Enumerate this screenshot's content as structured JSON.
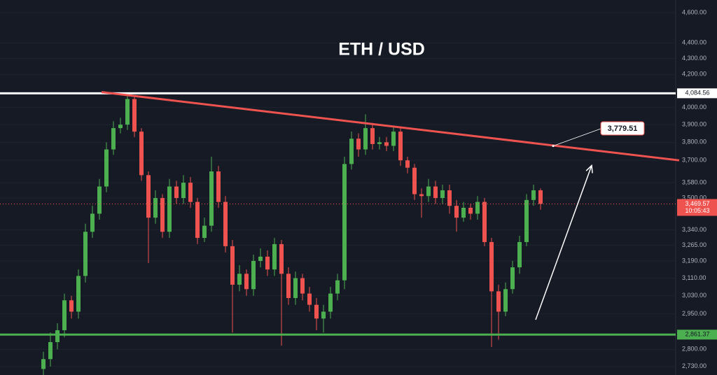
{
  "chart_data": {
    "type": "candlestick",
    "title": "ETH / USD",
    "log_scale": true,
    "grid": true,
    "xlim": [
      -6.2,
      90
    ],
    "ylim": [
      2696,
      4687
    ],
    "yticks": [
      {
        "value": 4600,
        "label": "4,600.00"
      },
      {
        "value": 4400,
        "label": "4,400.00"
      },
      {
        "value": 4300,
        "label": "4,300.00"
      },
      {
        "value": 4200,
        "label": "4,200.00"
      },
      {
        "value": 4000,
        "label": "4,000.00"
      },
      {
        "value": 3900,
        "label": "3,900.00"
      },
      {
        "value": 3800,
        "label": "3,800.00"
      },
      {
        "value": 3700,
        "label": "3,700.00"
      },
      {
        "value": 3580,
        "label": "3,580.00"
      },
      {
        "value": 3500,
        "label": "3,500.00"
      },
      {
        "value": 3340,
        "label": "3,340.00"
      },
      {
        "value": 3265,
        "label": "3,265.00"
      },
      {
        "value": 3190,
        "label": "3,190.00"
      },
      {
        "value": 3110,
        "label": "3,110.00"
      },
      {
        "value": 3030,
        "label": "3,030.00"
      },
      {
        "value": 2950,
        "label": "2,950.00"
      },
      {
        "value": 2800,
        "label": "2,800.00"
      },
      {
        "value": 2730,
        "label": "2,730.00"
      }
    ],
    "up_color": "#4caf50",
    "down_color": "#ef5350",
    "candles": {
      "open": [
        2720,
        2760,
        2830,
        2880,
        3010,
        2960,
        3120,
        3330,
        3420,
        3560,
        3760,
        3880,
        3900,
        4050,
        3860,
        3620,
        3400,
        3500,
        3330,
        3560,
        3500,
        3580,
        3480,
        3300,
        3360,
        3640,
        3480,
        3260,
        3080,
        3130,
        3060,
        3190,
        3210,
        3150,
        3270,
        3130,
        3020,
        3110,
        3040,
        2990,
        2930,
        2960,
        3040,
        3100,
        3680,
        3820,
        3760,
        3880,
        3790,
        3800,
        3780,
        3860,
        3700,
        3660,
        3520,
        3510,
        3560,
        3500,
        3540,
        3460,
        3400,
        3450,
        3420,
        3480,
        3280,
        3050,
        2960,
        3060,
        3160,
        3280,
        3490,
        3540
      ],
      "high": [
        2790,
        2870,
        2910,
        3040,
        3030,
        3150,
        3370,
        3460,
        3600,
        3800,
        3920,
        3940,
        4090,
        4070,
        3880,
        3640,
        3540,
        3520,
        3600,
        3590,
        3620,
        3610,
        3500,
        3400,
        3720,
        3670,
        3510,
        3290,
        3170,
        3150,
        3220,
        3250,
        3240,
        3300,
        3290,
        3160,
        3140,
        3130,
        3070,
        3020,
        2990,
        3070,
        3130,
        3720,
        3860,
        3850,
        3960,
        3910,
        3830,
        3830,
        3890,
        3880,
        3720,
        3680,
        3550,
        3600,
        3590,
        3570,
        3570,
        3490,
        3480,
        3470,
        3510,
        3500,
        3300,
        3080,
        3090,
        3190,
        3310,
        3520,
        3570,
        3550
      ],
      "low": [
        2690,
        2730,
        2800,
        2850,
        2930,
        2930,
        3090,
        3300,
        3390,
        3530,
        3730,
        3850,
        3870,
        3830,
        3590,
        3180,
        3370,
        3300,
        3300,
        3470,
        3470,
        3450,
        3270,
        3280,
        3330,
        3450,
        3230,
        2870,
        3050,
        3030,
        3030,
        3160,
        3120,
        3120,
        2815,
        2990,
        2990,
        3010,
        2960,
        2880,
        2870,
        2930,
        3010,
        3060,
        3650,
        3720,
        3730,
        3760,
        3760,
        3750,
        3750,
        3670,
        3630,
        3490,
        3400,
        3480,
        3470,
        3470,
        3420,
        3330,
        3380,
        3390,
        3390,
        3260,
        2810,
        2840,
        2940,
        3040,
        3130,
        3260,
        3460,
        3440
      ],
      "close": [
        2760,
        2830,
        2880,
        3010,
        2960,
        3120,
        3330,
        3420,
        3560,
        3760,
        3880,
        3900,
        4050,
        3860,
        3620,
        3400,
        3500,
        3330,
        3560,
        3500,
        3580,
        3480,
        3300,
        3360,
        3640,
        3480,
        3260,
        3080,
        3130,
        3060,
        3190,
        3210,
        3150,
        3270,
        3130,
        3020,
        3110,
        3040,
        2990,
        2930,
        2960,
        3040,
        3100,
        3680,
        3820,
        3760,
        3880,
        3790,
        3800,
        3780,
        3860,
        3700,
        3660,
        3520,
        3510,
        3560,
        3500,
        3540,
        3460,
        3400,
        3450,
        3420,
        3480,
        3280,
        3050,
        2960,
        3060,
        3160,
        3280,
        3490,
        3540,
        3470
      ]
    },
    "levels": [
      {
        "value": 4084.56,
        "label": "4,084.56",
        "color": "#ffffff"
      },
      {
        "value": 2861.37,
        "label": "2,861.37",
        "color": "#4caf50"
      }
    ],
    "current_price": {
      "value": 3469.57,
      "label": "3,469.57",
      "countdown": "10:05:43",
      "color": "#ef5350"
    },
    "trendline": {
      "x": [
        8.3,
        90.8
      ],
      "y": [
        4092,
        3700
      ],
      "color": "#ef5350"
    },
    "callout": {
      "x": 72.8,
      "value": 3779.51,
      "label": "3,779.51"
    },
    "arrow": {
      "x": [
        70.3,
        78.3
      ],
      "y": [
        2925,
        3672
      ],
      "color": "#ffffff"
    }
  }
}
